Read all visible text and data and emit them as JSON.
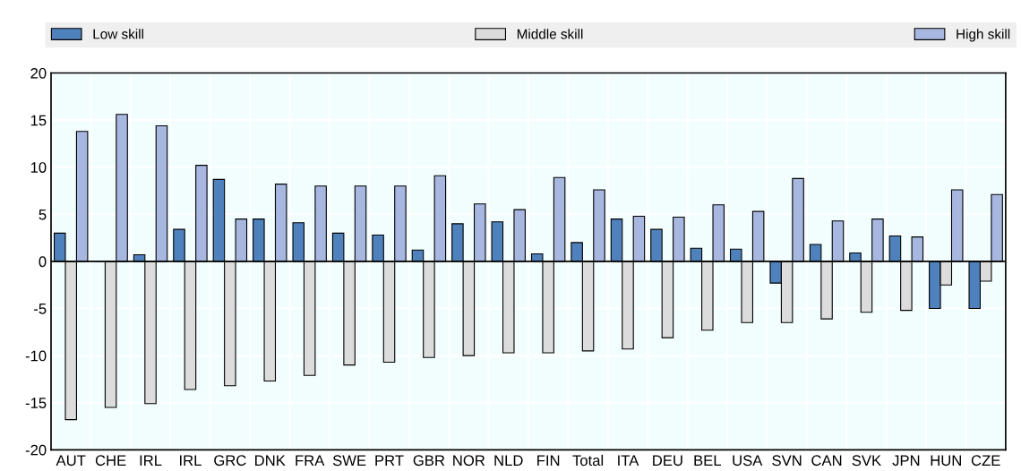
{
  "chart_data": {
    "type": "bar",
    "categories": [
      "AUT",
      "CHE",
      "IRL",
      "IRL",
      "GRC",
      "DNK",
      "FRA",
      "SWE",
      "PRT",
      "GBR",
      "NOR",
      "NLD",
      "FIN",
      "Total",
      "ITA",
      "DEU",
      "BEL",
      "USA",
      "SVN",
      "CAN",
      "SVK",
      "JPN",
      "HUN",
      "CZE"
    ],
    "series": [
      {
        "name": "Low skill",
        "color": "#4f81bd",
        "values": [
          3.0,
          0,
          0.7,
          3.4,
          8.7,
          4.5,
          4.1,
          3.0,
          2.8,
          1.2,
          4.0,
          4.2,
          0.8,
          2.0,
          4.5,
          3.4,
          1.4,
          1.3,
          -2.3,
          1.8,
          0.9,
          2.7,
          -5.0,
          -5.0
        ]
      },
      {
        "name": "Middle skill",
        "color": "#dcdcdc",
        "values": [
          -16.8,
          -15.5,
          -15.1,
          -13.6,
          -13.2,
          -12.7,
          -12.1,
          -11.0,
          -10.7,
          -10.2,
          -10.0,
          -9.7,
          -9.7,
          -9.5,
          -9.3,
          -8.1,
          -7.3,
          -6.5,
          -6.5,
          -6.1,
          -5.4,
          -5.2,
          -2.5,
          -2.1
        ]
      },
      {
        "name": "High skill",
        "color": "#a7b7e0",
        "values": [
          13.8,
          15.6,
          14.4,
          10.2,
          4.5,
          8.2,
          8.0,
          8.0,
          8.0,
          9.1,
          6.1,
          5.5,
          8.9,
          7.6,
          4.8,
          4.7,
          6.0,
          5.3,
          8.8,
          4.3,
          4.5,
          2.6,
          7.6,
          7.1
        ]
      }
    ],
    "ylim": [
      -20,
      20
    ],
    "yticks": [
      -20,
      -15,
      -10,
      -5,
      0,
      5,
      10,
      15,
      20
    ],
    "grid": true,
    "legend": "top"
  }
}
